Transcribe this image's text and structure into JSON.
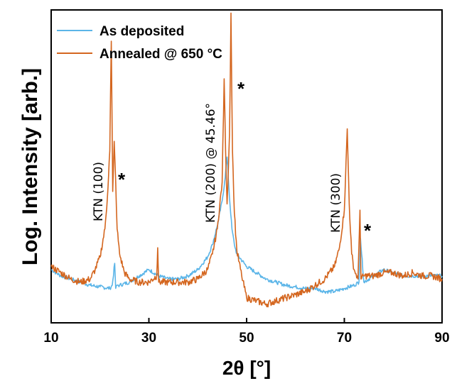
{
  "chart_data": {
    "type": "line",
    "xlabel": "2θ [°]",
    "ylabel": "Log. Intensity [arb.]",
    "xlim": [
      10,
      90
    ],
    "xticks": [
      "10",
      "30",
      "50",
      "70",
      "90"
    ],
    "y_scale": "log (arbitrary units, no tick labels)",
    "legend": "top-left",
    "series": [
      {
        "name": "As deposited",
        "color": "#5bb5e8",
        "x": [
          10,
          12,
          14,
          16,
          18,
          20,
          22,
          22.5,
          23.0,
          23.2,
          23.5,
          24,
          26,
          28,
          30,
          32,
          34,
          36,
          38,
          40,
          42,
          43,
          44,
          45,
          45.5,
          46,
          46.5,
          47,
          47.5,
          48,
          50,
          52,
          54,
          56,
          58,
          60,
          62,
          64,
          66,
          68,
          70,
          72,
          73,
          73.3,
          74,
          76,
          78,
          80,
          82,
          84,
          86,
          88,
          90
        ],
        "values": [
          0.17,
          0.15,
          0.14,
          0.13,
          0.12,
          0.115,
          0.11,
          0.12,
          0.19,
          0.11,
          0.12,
          0.12,
          0.13,
          0.15,
          0.17,
          0.15,
          0.14,
          0.14,
          0.15,
          0.17,
          0.21,
          0.25,
          0.31,
          0.39,
          0.45,
          0.53,
          0.4,
          0.3,
          0.25,
          0.22,
          0.18,
          0.16,
          0.14,
          0.13,
          0.12,
          0.115,
          0.11,
          0.11,
          0.1,
          0.1,
          0.11,
          0.12,
          0.13,
          0.27,
          0.13,
          0.15,
          0.17,
          0.16,
          0.15,
          0.15,
          0.15,
          0.15,
          0.15
        ]
      },
      {
        "name": "Annealed @ 650 °C",
        "color": "#d4661f",
        "x": [
          10,
          12,
          14,
          16,
          18,
          19,
          20,
          21,
          21.5,
          22,
          22.3,
          22.6,
          22.9,
          23.2,
          23.5,
          24,
          25,
          26,
          28,
          30,
          31.6,
          31.8,
          32,
          34,
          36,
          38,
          40,
          42,
          43,
          44,
          45,
          45.4,
          45.7,
          46,
          46.5,
          46.8,
          47.1,
          47.5,
          48,
          49,
          50,
          52,
          54,
          56,
          58,
          60,
          62,
          64,
          66,
          68,
          69,
          70,
          70.6,
          71,
          71.5,
          72,
          72.8,
          73.2,
          73.4,
          74,
          76,
          78,
          80,
          82,
          84,
          86,
          88,
          90
        ],
        "values": [
          0.18,
          0.16,
          0.14,
          0.13,
          0.14,
          0.17,
          0.21,
          0.3,
          0.4,
          0.55,
          0.9,
          0.42,
          0.58,
          0.45,
          0.3,
          0.22,
          0.16,
          0.14,
          0.13,
          0.13,
          0.15,
          0.24,
          0.13,
          0.13,
          0.13,
          0.13,
          0.14,
          0.17,
          0.22,
          0.3,
          0.45,
          0.78,
          0.55,
          0.38,
          0.6,
          0.99,
          0.55,
          0.35,
          0.23,
          0.15,
          0.08,
          0.07,
          0.06,
          0.07,
          0.08,
          0.09,
          0.1,
          0.12,
          0.14,
          0.18,
          0.24,
          0.36,
          0.62,
          0.38,
          0.22,
          0.17,
          0.14,
          0.36,
          0.14,
          0.15,
          0.15,
          0.16,
          0.16,
          0.15,
          0.16,
          0.15,
          0.15,
          0.14
        ]
      }
    ],
    "annotations": [
      {
        "text": "KTN (100)",
        "x": 22.3,
        "rotation": -90
      },
      {
        "text": "*",
        "x": 23.6
      },
      {
        "text": "KTN (200) @ 45.46°",
        "x": 44.5,
        "rotation": -90
      },
      {
        "text": "*",
        "x": 47.3
      },
      {
        "text": "KTN (300)",
        "x": 69.8,
        "rotation": -90
      },
      {
        "text": "*",
        "x": 73.6
      }
    ]
  }
}
